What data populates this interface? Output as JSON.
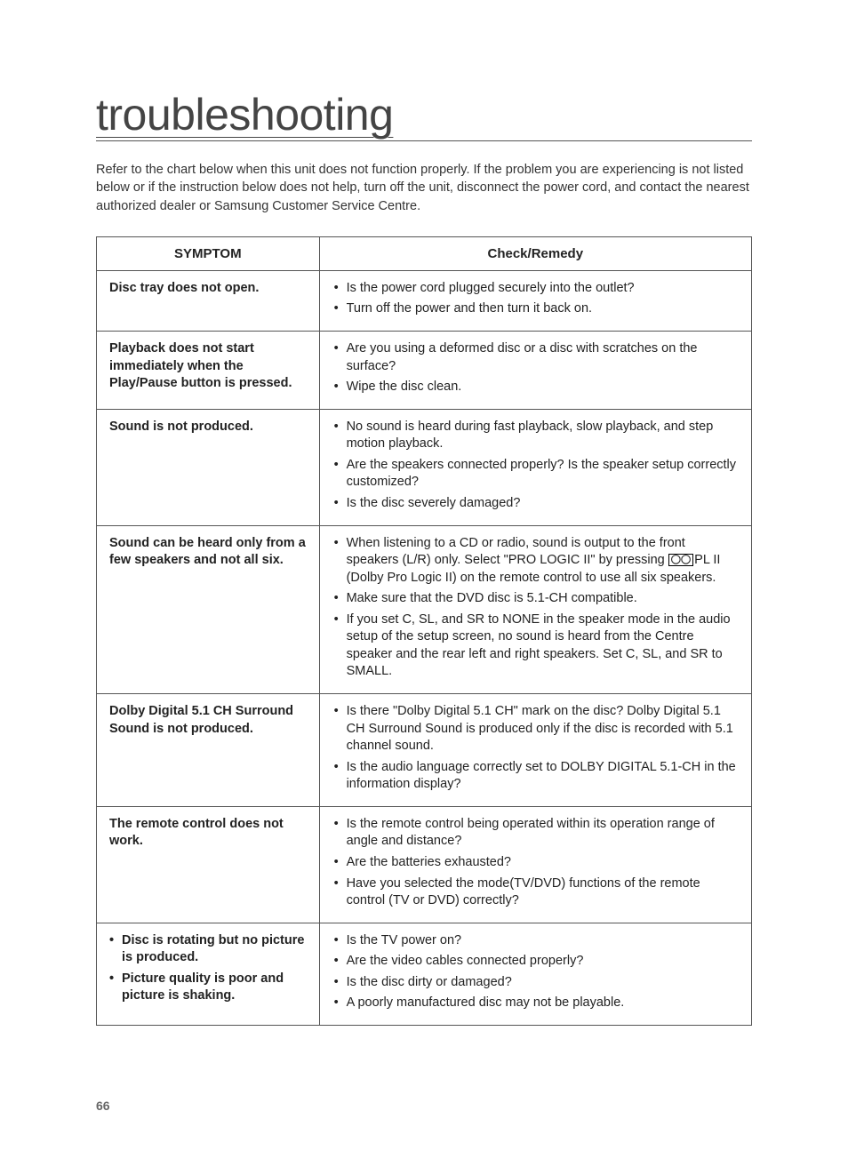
{
  "page": {
    "title": "troubleshooting",
    "intro": "Refer to the chart below when this unit does not function properly. If the problem you are experiencing is not listed below or if the instruction below does not help, turn off the unit, disconnect the power cord, and contact the nearest authorized dealer or Samsung Customer Service Centre.",
    "page_number": "66"
  },
  "table": {
    "headers": {
      "symptom": "SYMPTOM",
      "remedy": "Check/Remedy"
    },
    "rows": [
      {
        "symptom_text": "Disc tray does not open.",
        "remedies": [
          "Is the power cord plugged securely into the outlet?",
          "Turn off the power and then turn it back on."
        ]
      },
      {
        "symptom_text": "Playback does not start immediately when the Play/Pause button is pressed.",
        "remedies": [
          "Are you using a deformed disc or a disc with scratches on the surface?",
          "Wipe the disc clean."
        ]
      },
      {
        "symptom_text": "Sound is not produced.",
        "remedies": [
          "No sound is heard during fast playback, slow playback, and step motion playback.",
          "Are the speakers connected properly? Is the speaker setup correctly customized?",
          "Is the disc severely damaged?"
        ]
      },
      {
        "symptom_text": "Sound can be heard only from a few speakers and not all six.",
        "remedies_special": true,
        "r4a": "When listening to a CD or radio, sound is output to the front speakers (L/R) only. Select \"PRO LOGIC II\" by pressing ",
        "r4a_after": "PL II (Dolby Pro Logic II) on the remote control to use all six speakers.",
        "r4b": "Make sure that the DVD disc is 5.1-CH compatible.",
        "r4c": "If you set C, SL, and SR to NONE in the speaker mode in the audio setup of the setup screen, no sound is heard from the Centre speaker and the rear left and right speakers. Set C, SL, and SR to SMALL."
      },
      {
        "symptom_text": "Dolby Digital 5.1 CH Surround Sound is not produced.",
        "remedies": [
          "Is there \"Dolby Digital 5.1 CH\" mark on the disc? Dolby Digital 5.1 CH Surround Sound is produced only if the disc is recorded with 5.1 channel sound.",
          "Is the audio language correctly set to DOLBY DIGITAL 5.1-CH in the information display?"
        ]
      },
      {
        "symptom_text": "The remote control does not work.",
        "remedies": [
          "Is the remote control being operated within its operation range of angle and distance?",
          "Are the batteries exhausted?",
          "Have you selected the mode(TV/DVD) functions of the remote control (TV or DVD) correctly?"
        ]
      },
      {
        "symptom_bullets": [
          "Disc is rotating but no picture is produced.",
          "Picture quality is poor and picture is shaking."
        ],
        "remedies": [
          "Is the TV power on?",
          "Are the video cables connected properly?",
          "Is the disc dirty or damaged?",
          "A poorly manufactured disc may not be playable."
        ]
      }
    ]
  },
  "colors": {
    "background": "#ffffff",
    "text": "#222222",
    "border": "#555555",
    "page_num": "#666666"
  }
}
